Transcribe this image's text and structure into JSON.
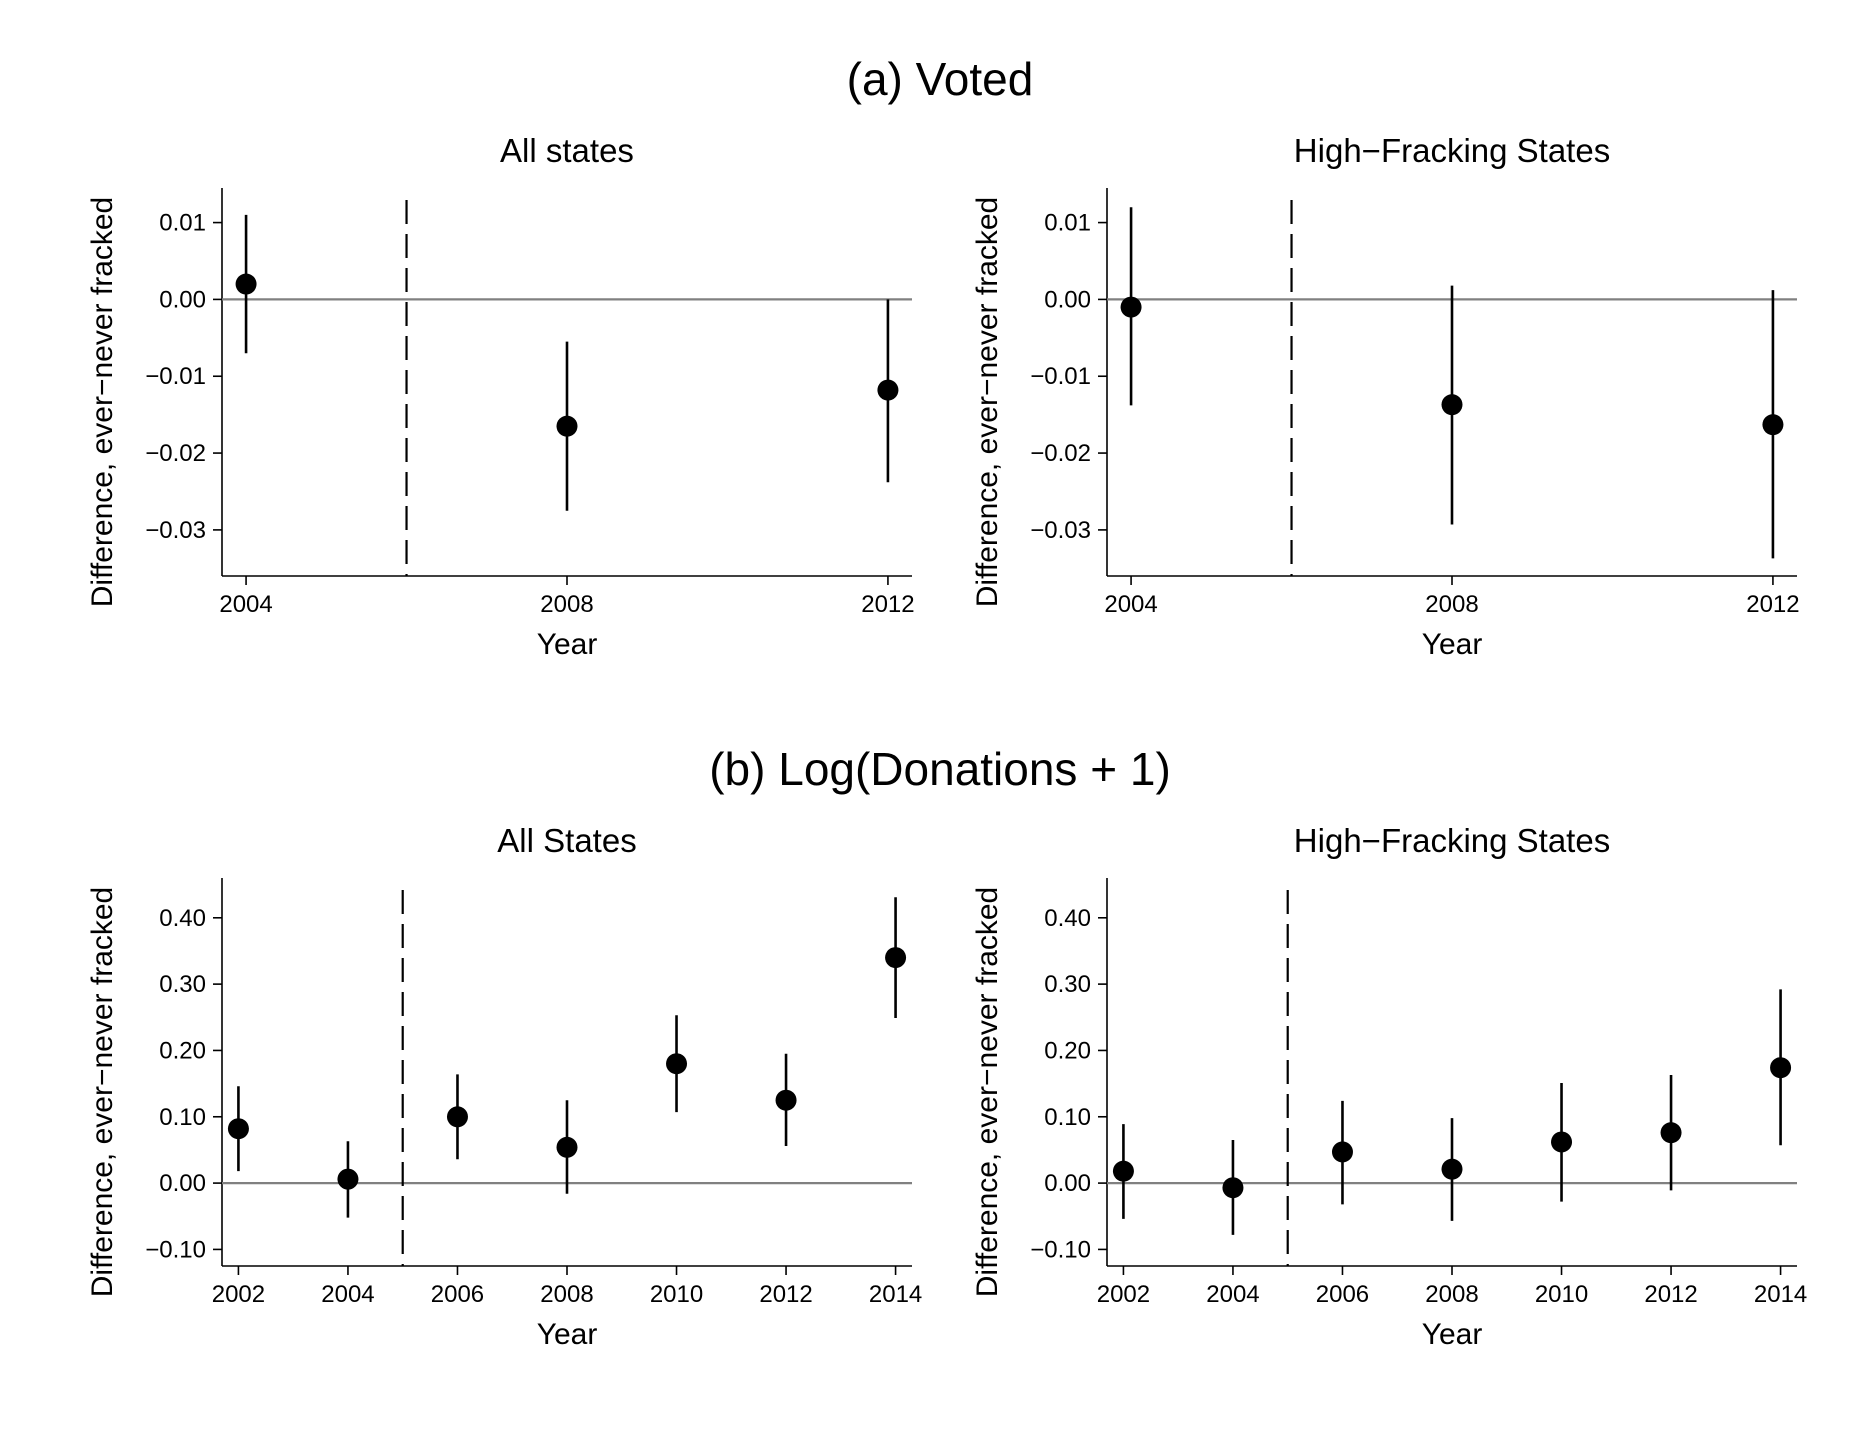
{
  "section_a_title": "(a) Voted",
  "section_b_title": "(b) Log(Donations + 1)",
  "chart_data": [
    {
      "type": "scatter",
      "section": "(a) Voted",
      "title": "All states",
      "xlabel": "Year",
      "ylabel": "Difference, ever−never fracked",
      "xlim": [
        2003.7,
        2012.3
      ],
      "ylim": [
        -0.036,
        0.0145
      ],
      "xticks": [
        2004,
        2008,
        2012
      ],
      "xtick_labels": [
        "2004",
        "2008",
        "2012"
      ],
      "yticks": [
        0.01,
        0.0,
        -0.01,
        -0.02,
        -0.03
      ],
      "ytick_labels": [
        "0.01",
        "0.00",
        "−0.01",
        "−0.02",
        "−0.03"
      ],
      "reference_line_y": 0,
      "treatment_line_x": 2006,
      "points": [
        {
          "x": 2004,
          "y": 0.002,
          "lo": -0.007,
          "hi": 0.011
        },
        {
          "x": 2008,
          "y": -0.0165,
          "lo": -0.0275,
          "hi": -0.0055
        },
        {
          "x": 2012,
          "y": -0.0118,
          "lo": -0.0238,
          "hi": 0.0
        }
      ]
    },
    {
      "type": "scatter",
      "section": "(a) Voted",
      "title": "High−Fracking States",
      "xlabel": "Year",
      "ylabel": "Difference, ever−never fracked",
      "xlim": [
        2003.7,
        2012.3
      ],
      "ylim": [
        -0.036,
        0.0145
      ],
      "xticks": [
        2004,
        2008,
        2012
      ],
      "xtick_labels": [
        "2004",
        "2008",
        "2012"
      ],
      "yticks": [
        0.01,
        0.0,
        -0.01,
        -0.02,
        -0.03
      ],
      "ytick_labels": [
        "0.01",
        "0.00",
        "−0.01",
        "−0.02",
        "−0.03"
      ],
      "reference_line_y": 0,
      "treatment_line_x": 2006,
      "points": [
        {
          "x": 2004,
          "y": -0.001,
          "lo": -0.0138,
          "hi": 0.012
        },
        {
          "x": 2008,
          "y": -0.0137,
          "lo": -0.0293,
          "hi": 0.0018
        },
        {
          "x": 2012,
          "y": -0.0163,
          "lo": -0.0337,
          "hi": 0.0012
        }
      ]
    },
    {
      "type": "scatter",
      "section": "(b) Log(Donations + 1)",
      "title": "All States",
      "xlabel": "Year",
      "ylabel": "Difference, ever−never fracked",
      "xlim": [
        2001.7,
        2014.3
      ],
      "ylim": [
        -0.125,
        0.46
      ],
      "xticks": [
        2002,
        2004,
        2006,
        2008,
        2010,
        2012,
        2014
      ],
      "xtick_labels": [
        "2002",
        "2004",
        "2006",
        "2008",
        "2010",
        "2012",
        "2014"
      ],
      "yticks": [
        0.4,
        0.3,
        0.2,
        0.1,
        0.0,
        -0.1
      ],
      "ytick_labels": [
        "0.40",
        "0.30",
        "0.20",
        "0.10",
        "0.00",
        "−0.10"
      ],
      "reference_line_y": 0,
      "treatment_line_x": 2005,
      "points": [
        {
          "x": 2002,
          "y": 0.082,
          "lo": 0.018,
          "hi": 0.146
        },
        {
          "x": 2004,
          "y": 0.006,
          "lo": -0.052,
          "hi": 0.063
        },
        {
          "x": 2006,
          "y": 0.1,
          "lo": 0.036,
          "hi": 0.164
        },
        {
          "x": 2008,
          "y": 0.054,
          "lo": -0.016,
          "hi": 0.125
        },
        {
          "x": 2010,
          "y": 0.18,
          "lo": 0.107,
          "hi": 0.253
        },
        {
          "x": 2012,
          "y": 0.125,
          "lo": 0.056,
          "hi": 0.195
        },
        {
          "x": 2014,
          "y": 0.34,
          "lo": 0.249,
          "hi": 0.431
        }
      ]
    },
    {
      "type": "scatter",
      "section": "(b) Log(Donations + 1)",
      "title": "High−Fracking States",
      "xlabel": "Year",
      "ylabel": "Difference, ever−never fracked",
      "xlim": [
        2001.7,
        2014.3
      ],
      "ylim": [
        -0.125,
        0.46
      ],
      "xticks": [
        2002,
        2004,
        2006,
        2008,
        2010,
        2012,
        2014
      ],
      "xtick_labels": [
        "2002",
        "2004",
        "2006",
        "2008",
        "2010",
        "2012",
        "2014"
      ],
      "yticks": [
        0.4,
        0.3,
        0.2,
        0.1,
        0.0,
        -0.1
      ],
      "ytick_labels": [
        "0.40",
        "0.30",
        "0.20",
        "0.10",
        "0.00",
        "−0.10"
      ],
      "reference_line_y": 0,
      "treatment_line_x": 2005,
      "points": [
        {
          "x": 2002,
          "y": 0.018,
          "lo": -0.054,
          "hi": 0.089
        },
        {
          "x": 2004,
          "y": -0.007,
          "lo": -0.078,
          "hi": 0.065
        },
        {
          "x": 2006,
          "y": 0.047,
          "lo": -0.032,
          "hi": 0.124
        },
        {
          "x": 2008,
          "y": 0.021,
          "lo": -0.057,
          "hi": 0.098
        },
        {
          "x": 2010,
          "y": 0.062,
          "lo": -0.028,
          "hi": 0.151
        },
        {
          "x": 2012,
          "y": 0.076,
          "lo": -0.011,
          "hi": 0.163
        },
        {
          "x": 2014,
          "y": 0.174,
          "lo": 0.057,
          "hi": 0.292
        }
      ]
    }
  ]
}
